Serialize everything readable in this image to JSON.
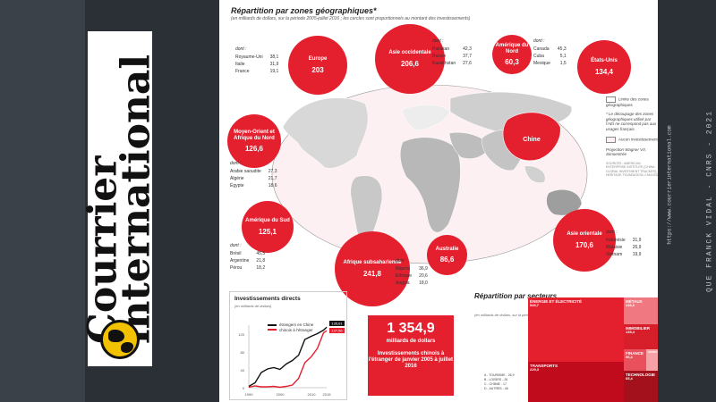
{
  "brand": {
    "logo_line1": "Courrier",
    "logo_line2": "international"
  },
  "page": {
    "title": "Répartition par zones géographiques*",
    "subtitle": "(en milliards de dollars, sur la période 2005-juillet 2016 ; les cercles sont proportionnels au montant des investissements)"
  },
  "regions": [
    {
      "name": "Europe",
      "value": "203"
    },
    {
      "name": "Asie occidentale",
      "value": "206,6"
    },
    {
      "name": "Amérique du Nord",
      "value": "60,3"
    },
    {
      "name": "États-Unis",
      "value": "134,4"
    },
    {
      "name": "Moyen-Orient et Afrique du Nord",
      "value": "126,6"
    },
    {
      "name": "Amérique du Sud",
      "value": "125,1"
    },
    {
      "name": "Afrique subsaharienne",
      "value": "241,8"
    },
    {
      "name": "Australie",
      "value": "86,6"
    },
    {
      "name": "Asie orientale",
      "value": "170,6"
    },
    {
      "name": "Chine",
      "value": ""
    }
  ],
  "details": {
    "dont": "dont :",
    "europe": [
      [
        "Royaume-Uni",
        "38,1"
      ],
      [
        "Italie",
        "31,9"
      ],
      [
        "France",
        "19,1"
      ]
    ],
    "asie_occ": [
      [
        "Pakistan",
        "42,3"
      ],
      [
        "Russie",
        "37,7"
      ],
      [
        "Kazakhstan",
        "27,6"
      ]
    ],
    "amn": [
      [
        "Canada",
        "45,3"
      ],
      [
        "Cuba",
        "5,1"
      ],
      [
        "Mexique",
        "1,5"
      ]
    ],
    "mo": [
      [
        "Arabie saoudite",
        "27,3"
      ],
      [
        "Algérie",
        "21,7"
      ],
      [
        "Égypte",
        "18,6"
      ]
    ],
    "ams": [
      [
        "Brésil",
        "45,5"
      ],
      [
        "Argentine",
        "21,8"
      ],
      [
        "Pérou",
        "18,2"
      ]
    ],
    "afr": [
      [
        "Nigeria",
        "36,9"
      ],
      [
        "Éthiopie",
        "20,6"
      ],
      [
        "Angola",
        "18,0"
      ]
    ],
    "asie_or": [
      [
        "Indonésie",
        "31,9"
      ],
      [
        "Malaisie",
        "26,9"
      ],
      [
        "Vietnam",
        "19,9"
      ]
    ]
  },
  "legend": {
    "zones": "Limite des zones géographiques",
    "note": "* Le découpage des zones géographiques utilisé par l'AEI ne correspond pas aux usages français.",
    "none": "Aucun investissement",
    "projection": "Projection Wagner VII, Simoentrée",
    "sources": "SOURCES : AMERICAN ENTERPRISE INSTITUTE (CHINA GLOBAL INVESTMENT TRACKER), HERITAGE FOUNDATION, CNUCED"
  },
  "invest_chart": {
    "title": "Investissements directs",
    "subtitle": "(en milliards de dollars)",
    "legend_foreign": "étrangers en Chine",
    "legend_china": "chinois à l'étranger",
    "label_foreign": "135,61",
    "label_china": "127,56"
  },
  "chart_data": {
    "type": "line",
    "title": "Investissements directs",
    "ylabel": "(en milliards de dollars)",
    "x": [
      1990,
      1992,
      1994,
      1996,
      1998,
      2000,
      2002,
      2004,
      2006,
      2008,
      2010,
      2012,
      2014,
      2015
    ],
    "series": [
      {
        "name": "étrangers en Chine",
        "values": [
          3,
          11,
          34,
          42,
          45,
          41,
          53,
          61,
          73,
          108,
          115,
          121,
          129,
          135.61
        ]
      },
      {
        "name": "chinois à l'étranger",
        "values": [
          1,
          4,
          2,
          2,
          3,
          1,
          3,
          6,
          21,
          56,
          69,
          88,
          123,
          127.56
        ]
      }
    ],
    "xticks": [
      "1990",
      "2000",
      "2010",
      "2015"
    ],
    "yticks": [
      "0",
      "40",
      "80",
      "120"
    ],
    "ylim": [
      0,
      140
    ],
    "grid": false
  },
  "totals": {
    "value": "1 354,9",
    "unit": "milliards de dollars",
    "desc": "Investissements chinois à l'étranger de janvier 2005 à juillet 2016"
  },
  "sectors": {
    "title": "Répartition par secteurs",
    "subtitle": "(en milliards de dollars, sur la période 2005-juillet 2016)",
    "blocks": [
      {
        "name": "ÉNERGIE ET ÉLECTRICITÉ",
        "value": "549,7"
      },
      {
        "name": "TRANSPORTS",
        "value": "229,3"
      },
      {
        "name": "MÉTAUX",
        "value": "146,6"
      },
      {
        "name": "IMMOBILIER",
        "value": "135,4"
      },
      {
        "name": "FINANCE",
        "value": "96,4"
      },
      {
        "name": "TECHNOLOGIE",
        "value": "65,4"
      },
      {
        "name": "AGRICULTURE",
        "value": ""
      }
    ],
    "list": [
      "A - TOURISME - 26,9",
      "B - LOISIRS - 26",
      "C - CHIMIE - 17",
      "D - AUTRES - 46"
    ]
  },
  "right": {
    "vertical1": "QUE FRANCK VIDAL - CNRS - 2021",
    "vertical2": "https://www.courrierinternational.com"
  },
  "colors": {
    "accent": "#e4202f",
    "dark_red": "#a3121c",
    "gray": "#b8b8b8",
    "background": "#2b3036"
  }
}
